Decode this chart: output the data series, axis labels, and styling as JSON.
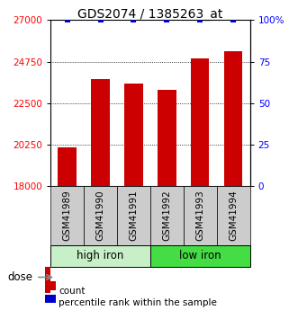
{
  "title": "GDS2074 / 1385263_at",
  "samples": [
    "GSM41989",
    "GSM41990",
    "GSM41991",
    "GSM41992",
    "GSM41993",
    "GSM41994"
  ],
  "counts": [
    20100,
    23800,
    23550,
    23200,
    24900,
    25300
  ],
  "percentile_ranks": [
    100,
    100,
    100,
    100,
    100,
    100
  ],
  "group_labels": [
    "high iron",
    "low iron"
  ],
  "group_colors": [
    "#c8f0c8",
    "#44dd44"
  ],
  "ylim_left": [
    18000,
    27000
  ],
  "ylim_right": [
    0,
    100
  ],
  "yticks_left": [
    18000,
    20250,
    22500,
    24750,
    27000
  ],
  "ytick_labels_left": [
    "18000",
    "20250",
    "22500",
    "24750",
    "27000"
  ],
  "yticks_right": [
    0,
    25,
    50,
    75,
    100
  ],
  "ytick_labels_right": [
    "0",
    "25",
    "50",
    "75",
    "100%"
  ],
  "bar_color": "#cc0000",
  "dot_color": "#0000cc",
  "bar_width": 0.55,
  "legend_count_label": "count",
  "legend_pct_label": "percentile rank within the sample",
  "dose_label": "dose",
  "sample_box_color": "#cccccc",
  "title_fontsize": 10,
  "tick_fontsize": 7.5,
  "label_fontsize": 8.5,
  "small_fontsize": 7.5
}
